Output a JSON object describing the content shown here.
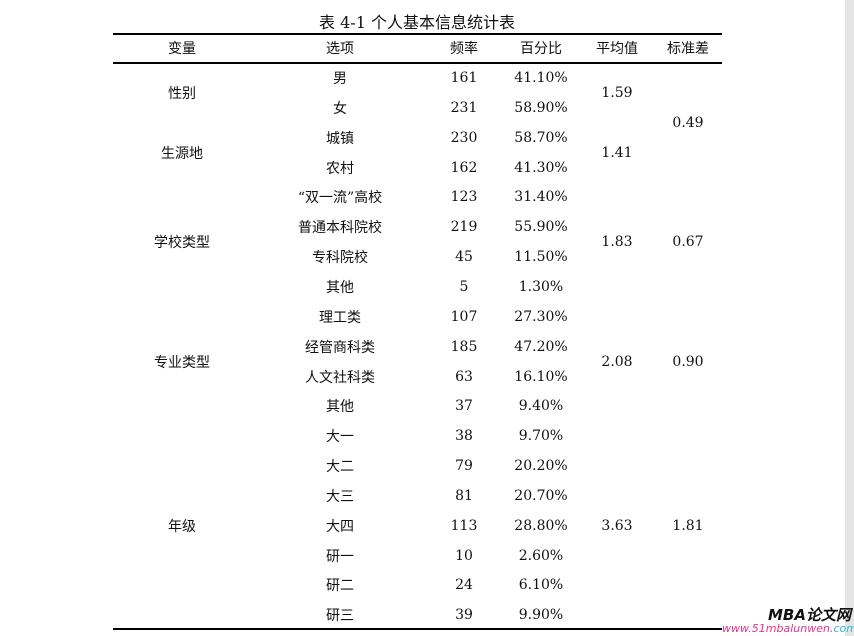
{
  "title": "表 4-1  个人基本信息统计表",
  "headers": [
    "变量",
    "选项",
    "频率",
    "百分比",
    "平均值",
    "标准差"
  ],
  "groups": [
    {
      "variable": "性别",
      "mean": "1.59",
      "rows": [
        [
          "男",
          "161",
          "41.10%"
        ],
        [
          "女",
          "231",
          "58.90%"
        ]
      ]
    },
    {
      "variable": "生源地",
      "mean": "1.41",
      "rows": [
        [
          "城镇",
          "230",
          "58.70%"
        ],
        [
          "农村",
          "162",
          "41.30%"
        ]
      ]
    },
    {
      "variable": "学校类型",
      "mean": "1.83",
      "rows": [
        [
          "“双一流”高校",
          "123",
          "31.40%"
        ],
        [
          "普通本科院校",
          "219",
          "55.90%"
        ],
        [
          "专科院校",
          "45",
          "11.50%"
        ],
        [
          "其他",
          "5",
          "1.30%"
        ]
      ]
    },
    {
      "variable": "专业类型",
      "mean": "2.08",
      "rows": [
        [
          "理工类",
          "107",
          "27.30%"
        ],
        [
          "经管商科类",
          "185",
          "47.20%"
        ],
        [
          "人文社科类",
          "63",
          "16.10%"
        ],
        [
          "其他",
          "37",
          "9.40%"
        ]
      ]
    },
    {
      "variable": "年级",
      "mean": "3.63",
      "rows": [
        [
          "大一",
          "38",
          "9.70%"
        ],
        [
          "大二",
          "79",
          "20.20%"
        ],
        [
          "大三",
          "81",
          "20.70%"
        ],
        [
          "大四",
          "113",
          "28.80%"
        ],
        [
          "研一",
          "10",
          "2.60%"
        ],
        [
          "研二",
          "24",
          "6.10%"
        ],
        [
          "研三",
          "39",
          "9.90%"
        ]
      ]
    }
  ],
  "std_devs": [
    {
      "value": "0.49",
      "groups": [
        0,
        1
      ]
    },
    {
      "value": "0.67",
      "groups": [
        2
      ]
    },
    {
      "value": "0.90",
      "groups": [
        3
      ]
    },
    {
      "value": "1.81",
      "groups": [
        4
      ]
    }
  ],
  "watermark": {
    "brand": "MBA论文网",
    "url": "www.51mbalunwen.",
    "url_tld": "com"
  }
}
